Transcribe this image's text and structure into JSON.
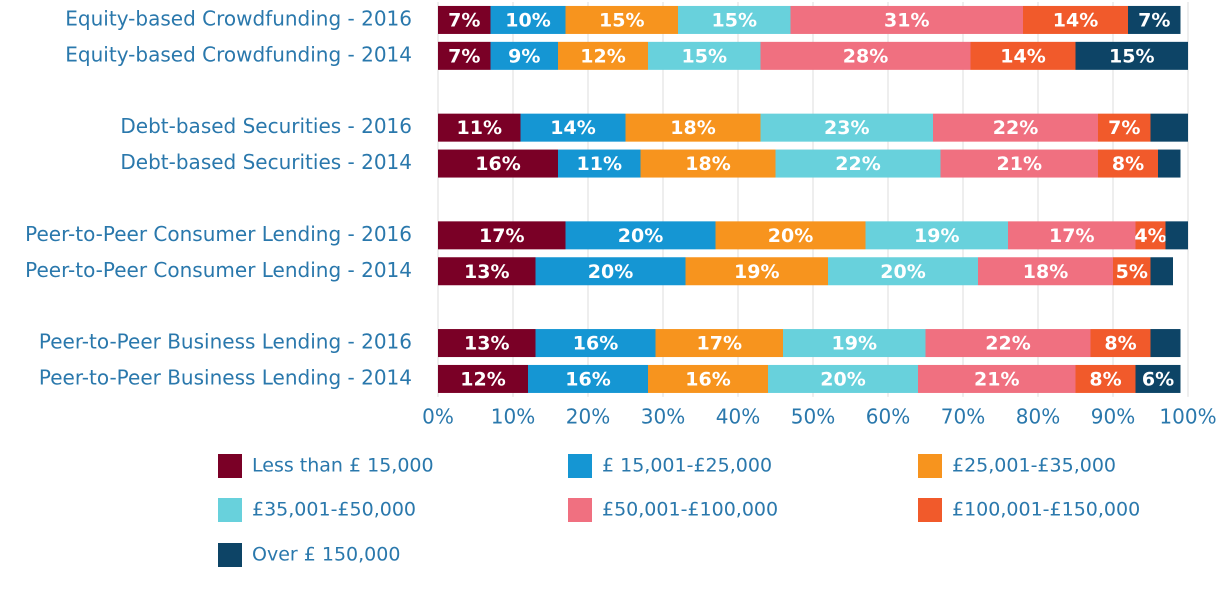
{
  "chart_data": {
    "type": "stacked_barh",
    "categories": [
      "Equity-based Crowdfunding - 2016",
      "Equity-based Crowdfunding - 2014",
      null,
      "Debt-based Securities - 2016",
      "Debt-based Securities - 2014",
      null,
      "Peer-to-Peer Consumer Lending - 2016",
      "Peer-to-Peer Consumer Lending - 2014",
      null,
      "Peer-to-Peer Business Lending - 2016",
      "Peer-to-Peer Business Lending - 2014"
    ],
    "series": [
      {
        "name": "Less than £ 15,000",
        "color": "#7a0026",
        "values": [
          7,
          7,
          null,
          11,
          16,
          null,
          17,
          13,
          null,
          13,
          12
        ],
        "value_labels": [
          "7%",
          "7%",
          null,
          "11%",
          "16%",
          null,
          "17%",
          "13%",
          null,
          "13%",
          "12%"
        ]
      },
      {
        "name": "£ 15,001-£25,000",
        "color": "#1596d3",
        "values": [
          10,
          9,
          null,
          14,
          11,
          null,
          20,
          20,
          null,
          16,
          16
        ],
        "value_labels": [
          "10%",
          "9%",
          null,
          "14%",
          "11%",
          null,
          "20%",
          "20%",
          null,
          "16%",
          "16%"
        ]
      },
      {
        "name": "£25,001-£35,000",
        "color": "#f7941e",
        "values": [
          15,
          12,
          null,
          18,
          18,
          null,
          20,
          19,
          null,
          17,
          16
        ],
        "value_labels": [
          "15%",
          "12%",
          null,
          "18%",
          "18%",
          null,
          "20%",
          "19%",
          null,
          "17%",
          "16%"
        ]
      },
      {
        "name": "£35,001-£50,000",
        "color": "#68d1dc",
        "values": [
          15,
          15,
          null,
          23,
          22,
          null,
          19,
          20,
          null,
          19,
          20
        ],
        "value_labels": [
          "15%",
          "15%",
          null,
          "23%",
          "22%",
          null,
          "19%",
          "20%",
          null,
          "19%",
          "20%"
        ]
      },
      {
        "name": "£50,001-£100,000",
        "color": "#f07080",
        "values": [
          31,
          28,
          null,
          22,
          21,
          null,
          17,
          18,
          null,
          22,
          21
        ],
        "value_labels": [
          "31%",
          "28%",
          null,
          "22%",
          "21%",
          null,
          "17%",
          "18%",
          null,
          "22%",
          "21%"
        ]
      },
      {
        "name": "£100,001-£150,000",
        "color": "#f15a2b",
        "values": [
          14,
          14,
          null,
          7,
          8,
          null,
          4,
          5,
          null,
          8,
          8
        ],
        "value_labels": [
          "14%",
          "14%",
          null,
          "7%",
          "8%",
          null,
          "4%",
          "5%",
          null,
          "8%",
          "8%"
        ]
      },
      {
        "name": "Over £ 150,000",
        "color": "#0d4466",
        "values": [
          7,
          15,
          null,
          5,
          3,
          null,
          3,
          3,
          null,
          4,
          6
        ],
        "value_labels": [
          "7%",
          "15%",
          null,
          null,
          null,
          null,
          null,
          null,
          null,
          null,
          "6%"
        ]
      }
    ],
    "xlim": [
      0,
      100
    ],
    "xticks": [
      {
        "value": 0,
        "label": "0%"
      },
      {
        "value": 10,
        "label": "10%"
      },
      {
        "value": 20,
        "label": "20%"
      },
      {
        "value": 30,
        "label": "30%"
      },
      {
        "value": 40,
        "label": "40%"
      },
      {
        "value": 50,
        "label": "50%"
      },
      {
        "value": 60,
        "label": "60%"
      },
      {
        "value": 70,
        "label": "70%"
      },
      {
        "value": 80,
        "label": "80%"
      },
      {
        "value": 90,
        "label": "90%"
      },
      {
        "value": 100,
        "label": "100%"
      }
    ],
    "grid": true
  }
}
